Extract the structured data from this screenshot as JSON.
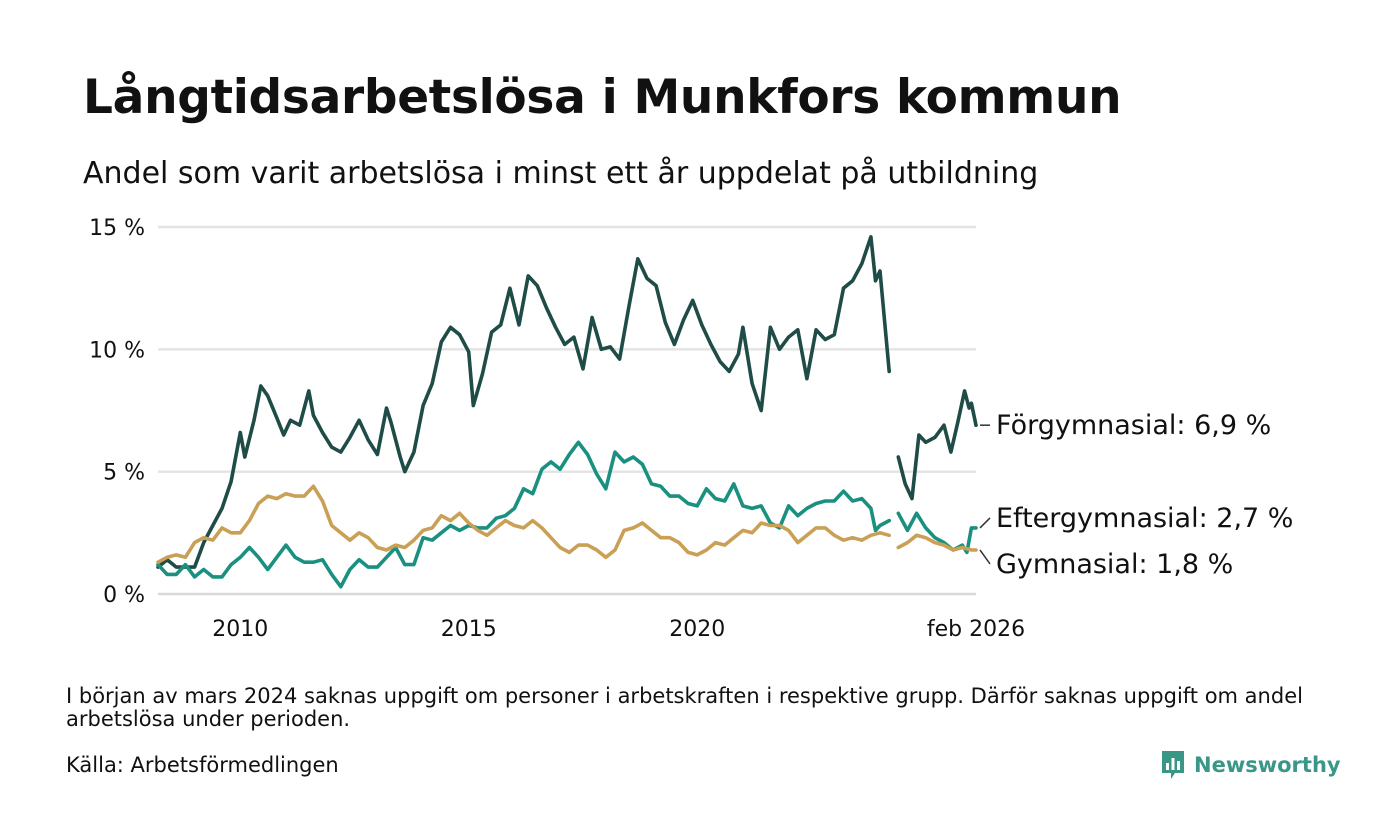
{
  "title": "Långtidsarbetslösa i Munkfors kommun",
  "subtitle": "Andel som varit arbetslösa i minst ett år uppdelat på utbildning",
  "footnote": "I början av mars 2024 saknas uppgift om personer i arbetskraften i respektive grupp. Därför saknas uppgift om andel arbetslösa under perioden.",
  "source": "Källa: Arbetsförmedlingen",
  "brand": {
    "name": "Newsworthy",
    "icon": "newsworthy-logo-icon",
    "color": "#3a9686"
  },
  "chart_data": {
    "type": "line",
    "title": "Långtidsarbetslösa i Munkfors kommun",
    "xlabel": "",
    "ylabel": "",
    "x_range": [
      2008.2,
      2026.1
    ],
    "ylim": [
      0,
      15
    ],
    "yticks": [
      0,
      5,
      10,
      15
    ],
    "ytick_labels": [
      "0 %",
      "5 %",
      "10 %",
      "15 %"
    ],
    "xticks": [
      2010,
      2015,
      2020,
      2026.1
    ],
    "xtick_labels": [
      "2010",
      "2015",
      "2020",
      "feb 2026"
    ],
    "grid": true,
    "gap": [
      2023.6,
      2024.0
    ],
    "series": [
      {
        "name": "Förgymnasial",
        "label": "Förgymnasial: 6,9 %",
        "color": "#1f4c46",
        "last_value": 6.9,
        "points": [
          [
            2008.2,
            1.1
          ],
          [
            2008.4,
            1.4
          ],
          [
            2008.6,
            1.1
          ],
          [
            2008.8,
            1.1
          ],
          [
            2009.0,
            1.1
          ],
          [
            2009.2,
            2.1
          ],
          [
            2009.4,
            2.8
          ],
          [
            2009.6,
            3.5
          ],
          [
            2009.8,
            4.6
          ],
          [
            2010.0,
            6.6
          ],
          [
            2010.1,
            5.6
          ],
          [
            2010.3,
            7.1
          ],
          [
            2010.45,
            8.5
          ],
          [
            2010.6,
            8.1
          ],
          [
            2010.8,
            7.2
          ],
          [
            2010.95,
            6.5
          ],
          [
            2011.1,
            7.1
          ],
          [
            2011.3,
            6.9
          ],
          [
            2011.5,
            8.3
          ],
          [
            2011.6,
            7.3
          ],
          [
            2011.8,
            6.6
          ],
          [
            2012.0,
            6.0
          ],
          [
            2012.2,
            5.8
          ],
          [
            2012.4,
            6.4
          ],
          [
            2012.6,
            7.1
          ],
          [
            2012.8,
            6.3
          ],
          [
            2013.0,
            5.7
          ],
          [
            2013.2,
            7.6
          ],
          [
            2013.3,
            7.0
          ],
          [
            2013.5,
            5.6
          ],
          [
            2013.6,
            5.0
          ],
          [
            2013.8,
            5.8
          ],
          [
            2014.0,
            7.7
          ],
          [
            2014.2,
            8.6
          ],
          [
            2014.4,
            10.3
          ],
          [
            2014.6,
            10.9
          ],
          [
            2014.8,
            10.6
          ],
          [
            2015.0,
            9.9
          ],
          [
            2015.1,
            7.7
          ],
          [
            2015.3,
            9.0
          ],
          [
            2015.5,
            10.7
          ],
          [
            2015.7,
            11.0
          ],
          [
            2015.9,
            12.5
          ],
          [
            2016.1,
            11.0
          ],
          [
            2016.3,
            13.0
          ],
          [
            2016.5,
            12.6
          ],
          [
            2016.7,
            11.7
          ],
          [
            2016.9,
            10.9
          ],
          [
            2017.1,
            10.2
          ],
          [
            2017.3,
            10.5
          ],
          [
            2017.5,
            9.2
          ],
          [
            2017.7,
            11.3
          ],
          [
            2017.9,
            10.0
          ],
          [
            2018.1,
            10.1
          ],
          [
            2018.3,
            9.6
          ],
          [
            2018.5,
            11.7
          ],
          [
            2018.7,
            13.7
          ],
          [
            2018.9,
            12.9
          ],
          [
            2019.1,
            12.6
          ],
          [
            2019.3,
            11.1
          ],
          [
            2019.5,
            10.2
          ],
          [
            2019.7,
            11.2
          ],
          [
            2019.9,
            12.0
          ],
          [
            2020.1,
            11.0
          ],
          [
            2020.3,
            10.2
          ],
          [
            2020.5,
            9.5
          ],
          [
            2020.7,
            9.1
          ],
          [
            2020.9,
            9.8
          ],
          [
            2021.0,
            10.9
          ],
          [
            2021.2,
            8.6
          ],
          [
            2021.4,
            7.5
          ],
          [
            2021.6,
            10.9
          ],
          [
            2021.8,
            10.0
          ],
          [
            2022.0,
            10.5
          ],
          [
            2022.2,
            10.8
          ],
          [
            2022.4,
            8.8
          ],
          [
            2022.6,
            10.8
          ],
          [
            2022.8,
            10.4
          ],
          [
            2023.0,
            10.6
          ],
          [
            2023.2,
            12.5
          ],
          [
            2023.4,
            12.8
          ],
          [
            2023.6,
            13.5
          ],
          [
            2023.8,
            14.6
          ],
          [
            2023.9,
            12.8
          ],
          [
            2024.0,
            13.2
          ],
          [
            2024.2,
            9.1
          ],
          null,
          [
            2024.4,
            5.6
          ],
          [
            2024.55,
            4.5
          ],
          [
            2024.7,
            3.9
          ],
          [
            2024.85,
            6.5
          ],
          [
            2025.0,
            6.2
          ],
          [
            2025.2,
            6.4
          ],
          [
            2025.4,
            6.9
          ],
          [
            2025.55,
            5.8
          ],
          [
            2025.7,
            7.0
          ],
          [
            2025.85,
            8.3
          ],
          [
            2025.95,
            7.6
          ],
          [
            2026.0,
            7.8
          ],
          [
            2026.1,
            6.9
          ]
        ]
      },
      {
        "name": "Eftergymnasial",
        "label": "Eftergymnasial: 2,7 %",
        "color": "#1a9080",
        "last_value": 2.7,
        "points": [
          [
            2008.2,
            1.2
          ],
          [
            2008.4,
            0.8
          ],
          [
            2008.6,
            0.8
          ],
          [
            2008.8,
            1.2
          ],
          [
            2009.0,
            0.7
          ],
          [
            2009.2,
            1.0
          ],
          [
            2009.4,
            0.7
          ],
          [
            2009.6,
            0.7
          ],
          [
            2009.8,
            1.2
          ],
          [
            2010.0,
            1.5
          ],
          [
            2010.2,
            1.9
          ],
          [
            2010.4,
            1.5
          ],
          [
            2010.6,
            1.0
          ],
          [
            2010.8,
            1.5
          ],
          [
            2011.0,
            2.0
          ],
          [
            2011.2,
            1.5
          ],
          [
            2011.4,
            1.3
          ],
          [
            2011.6,
            1.3
          ],
          [
            2011.8,
            1.4
          ],
          [
            2012.0,
            0.8
          ],
          [
            2012.2,
            0.3
          ],
          [
            2012.4,
            1.0
          ],
          [
            2012.6,
            1.4
          ],
          [
            2012.8,
            1.1
          ],
          [
            2013.0,
            1.1
          ],
          [
            2013.2,
            1.5
          ],
          [
            2013.4,
            1.9
          ],
          [
            2013.6,
            1.2
          ],
          [
            2013.8,
            1.2
          ],
          [
            2014.0,
            2.3
          ],
          [
            2014.2,
            2.2
          ],
          [
            2014.4,
            2.5
          ],
          [
            2014.6,
            2.8
          ],
          [
            2014.8,
            2.6
          ],
          [
            2015.0,
            2.8
          ],
          [
            2015.2,
            2.7
          ],
          [
            2015.4,
            2.7
          ],
          [
            2015.6,
            3.1
          ],
          [
            2015.8,
            3.2
          ],
          [
            2016.0,
            3.5
          ],
          [
            2016.2,
            4.3
          ],
          [
            2016.4,
            4.1
          ],
          [
            2016.6,
            5.1
          ],
          [
            2016.8,
            5.4
          ],
          [
            2017.0,
            5.1
          ],
          [
            2017.2,
            5.7
          ],
          [
            2017.4,
            6.2
          ],
          [
            2017.6,
            5.7
          ],
          [
            2017.8,
            4.9
          ],
          [
            2018.0,
            4.3
          ],
          [
            2018.2,
            5.8
          ],
          [
            2018.4,
            5.4
          ],
          [
            2018.6,
            5.6
          ],
          [
            2018.8,
            5.3
          ],
          [
            2019.0,
            4.5
          ],
          [
            2019.2,
            4.4
          ],
          [
            2019.4,
            4.0
          ],
          [
            2019.6,
            4.0
          ],
          [
            2019.8,
            3.7
          ],
          [
            2020.0,
            3.6
          ],
          [
            2020.2,
            4.3
          ],
          [
            2020.4,
            3.9
          ],
          [
            2020.6,
            3.8
          ],
          [
            2020.8,
            4.5
          ],
          [
            2021.0,
            3.6
          ],
          [
            2021.2,
            3.5
          ],
          [
            2021.4,
            3.6
          ],
          [
            2021.6,
            2.9
          ],
          [
            2021.8,
            2.7
          ],
          [
            2022.0,
            3.6
          ],
          [
            2022.2,
            3.2
          ],
          [
            2022.4,
            3.5
          ],
          [
            2022.6,
            3.7
          ],
          [
            2022.8,
            3.8
          ],
          [
            2023.0,
            3.8
          ],
          [
            2023.2,
            4.2
          ],
          [
            2023.4,
            3.8
          ],
          [
            2023.6,
            3.9
          ],
          [
            2023.8,
            3.5
          ],
          [
            2023.9,
            2.6
          ],
          [
            2024.0,
            2.8
          ],
          [
            2024.2,
            3.0
          ],
          null,
          [
            2024.4,
            3.3
          ],
          [
            2024.6,
            2.6
          ],
          [
            2024.8,
            3.3
          ],
          [
            2025.0,
            2.7
          ],
          [
            2025.2,
            2.3
          ],
          [
            2025.4,
            2.1
          ],
          [
            2025.6,
            1.8
          ],
          [
            2025.8,
            2.0
          ],
          [
            2025.9,
            1.7
          ],
          [
            2026.0,
            2.7
          ],
          [
            2026.1,
            2.7
          ]
        ]
      },
      {
        "name": "Gymnasial",
        "label": "Gymnasial: 1,8 %",
        "color": "#c9a055",
        "last_value": 1.8,
        "points": [
          [
            2008.2,
            1.3
          ],
          [
            2008.4,
            1.5
          ],
          [
            2008.6,
            1.6
          ],
          [
            2008.8,
            1.5
          ],
          [
            2009.0,
            2.1
          ],
          [
            2009.2,
            2.3
          ],
          [
            2009.4,
            2.2
          ],
          [
            2009.6,
            2.7
          ],
          [
            2009.8,
            2.5
          ],
          [
            2010.0,
            2.5
          ],
          [
            2010.2,
            3.0
          ],
          [
            2010.4,
            3.7
          ],
          [
            2010.6,
            4.0
          ],
          [
            2010.8,
            3.9
          ],
          [
            2011.0,
            4.1
          ],
          [
            2011.2,
            4.0
          ],
          [
            2011.4,
            4.0
          ],
          [
            2011.6,
            4.4
          ],
          [
            2011.8,
            3.8
          ],
          [
            2012.0,
            2.8
          ],
          [
            2012.2,
            2.5
          ],
          [
            2012.4,
            2.2
          ],
          [
            2012.6,
            2.5
          ],
          [
            2012.8,
            2.3
          ],
          [
            2013.0,
            1.9
          ],
          [
            2013.2,
            1.8
          ],
          [
            2013.4,
            2.0
          ],
          [
            2013.6,
            1.9
          ],
          [
            2013.8,
            2.2
          ],
          [
            2014.0,
            2.6
          ],
          [
            2014.2,
            2.7
          ],
          [
            2014.4,
            3.2
          ],
          [
            2014.6,
            3.0
          ],
          [
            2014.8,
            3.3
          ],
          [
            2015.0,
            2.9
          ],
          [
            2015.2,
            2.6
          ],
          [
            2015.4,
            2.4
          ],
          [
            2015.6,
            2.7
          ],
          [
            2015.8,
            3.0
          ],
          [
            2016.0,
            2.8
          ],
          [
            2016.2,
            2.7
          ],
          [
            2016.4,
            3.0
          ],
          [
            2016.6,
            2.7
          ],
          [
            2016.8,
            2.3
          ],
          [
            2017.0,
            1.9
          ],
          [
            2017.2,
            1.7
          ],
          [
            2017.4,
            2.0
          ],
          [
            2017.6,
            2.0
          ],
          [
            2017.8,
            1.8
          ],
          [
            2018.0,
            1.5
          ],
          [
            2018.2,
            1.8
          ],
          [
            2018.4,
            2.6
          ],
          [
            2018.6,
            2.7
          ],
          [
            2018.8,
            2.9
          ],
          [
            2019.0,
            2.6
          ],
          [
            2019.2,
            2.3
          ],
          [
            2019.4,
            2.3
          ],
          [
            2019.6,
            2.1
          ],
          [
            2019.8,
            1.7
          ],
          [
            2020.0,
            1.6
          ],
          [
            2020.2,
            1.8
          ],
          [
            2020.4,
            2.1
          ],
          [
            2020.6,
            2.0
          ],
          [
            2020.8,
            2.3
          ],
          [
            2021.0,
            2.6
          ],
          [
            2021.2,
            2.5
          ],
          [
            2021.4,
            2.9
          ],
          [
            2021.6,
            2.8
          ],
          [
            2021.8,
            2.8
          ],
          [
            2022.0,
            2.6
          ],
          [
            2022.2,
            2.1
          ],
          [
            2022.4,
            2.4
          ],
          [
            2022.6,
            2.7
          ],
          [
            2022.8,
            2.7
          ],
          [
            2023.0,
            2.4
          ],
          [
            2023.2,
            2.2
          ],
          [
            2023.4,
            2.3
          ],
          [
            2023.6,
            2.2
          ],
          [
            2023.8,
            2.4
          ],
          [
            2024.0,
            2.5
          ],
          [
            2024.2,
            2.4
          ],
          null,
          [
            2024.4,
            1.9
          ],
          [
            2024.6,
            2.1
          ],
          [
            2024.8,
            2.4
          ],
          [
            2025.0,
            2.3
          ],
          [
            2025.2,
            2.1
          ],
          [
            2025.4,
            2.0
          ],
          [
            2025.6,
            1.8
          ],
          [
            2025.8,
            1.9
          ],
          [
            2026.0,
            1.8
          ],
          [
            2026.1,
            1.8
          ]
        ]
      }
    ]
  }
}
